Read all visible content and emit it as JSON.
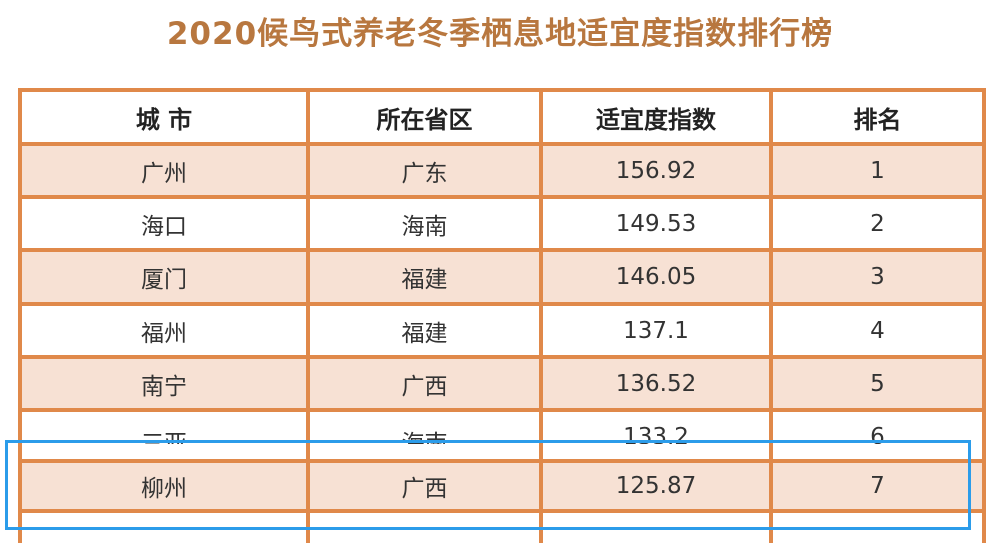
{
  "title": "2020候鸟式养老冬季栖息地适宜度指数排行榜",
  "table": {
    "headers": [
      "城 市",
      "所在省区",
      "适宜度指数",
      "排名"
    ],
    "rows": [
      [
        "广州",
        "广东",
        "156.92",
        "1"
      ],
      [
        "海口",
        "海南",
        "149.53",
        "2"
      ],
      [
        "厦门",
        "福建",
        "146.05",
        "3"
      ],
      [
        "福州",
        "福建",
        "137.1",
        "4"
      ],
      [
        "南宁",
        "广西",
        "136.52",
        "5"
      ],
      [
        "三亚",
        "海南",
        "133.2",
        "6"
      ],
      [
        "柳州",
        "广西",
        "125.87",
        "7"
      ]
    ]
  },
  "colors": {
    "border": "#e0894a",
    "shade": "#f7e1d4",
    "title": "#b8773f",
    "highlight": "#2b9cea"
  }
}
